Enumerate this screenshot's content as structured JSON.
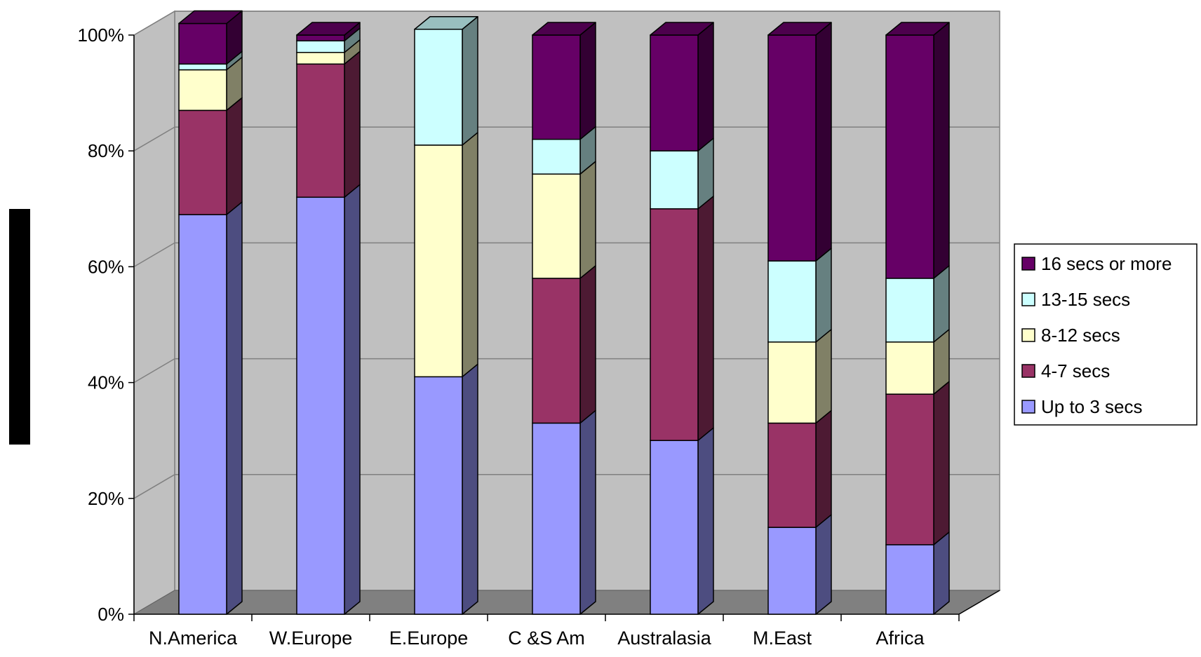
{
  "chart_data": {
    "type": "bar",
    "stacked": true,
    "percent_stacked": true,
    "three_d": true,
    "categories": [
      "N.America",
      "W.Europe",
      "E.Europe",
      "C &S Am",
      "Australasia",
      "M.East",
      "Africa"
    ],
    "series": [
      {
        "name": "Up to 3 secs",
        "color": "#9999ff",
        "values": [
          69,
          72,
          41,
          33,
          30,
          15,
          12
        ]
      },
      {
        "name": "4-7 secs",
        "color": "#993366",
        "values": [
          18,
          23,
          0,
          25,
          40,
          18,
          26
        ]
      },
      {
        "name": "8-12 secs",
        "color": "#ffffcc",
        "values": [
          7,
          2,
          40,
          18,
          0,
          14,
          9
        ]
      },
      {
        "name": "13-15 secs",
        "color": "#ccffff",
        "values": [
          1,
          2,
          20,
          6,
          10,
          14,
          11
        ]
      },
      {
        "name": "16 secs or more",
        "color": "#660066",
        "values": [
          7,
          1,
          0,
          18,
          20,
          39,
          42
        ]
      }
    ],
    "y_tick_labels": [
      "0%",
      "20%",
      "40%",
      "60%",
      "80%",
      "100%"
    ],
    "ylim": [
      0,
      100
    ],
    "grid": true,
    "legend_position": "right",
    "legend_order": [
      "16 secs or more",
      "13-15 secs",
      "8-12 secs",
      "4-7 secs",
      "Up to 3 secs"
    ],
    "colors": {
      "back_wall": "#c0c0c0",
      "floor": "#808080",
      "gridline": "#808080"
    }
  }
}
